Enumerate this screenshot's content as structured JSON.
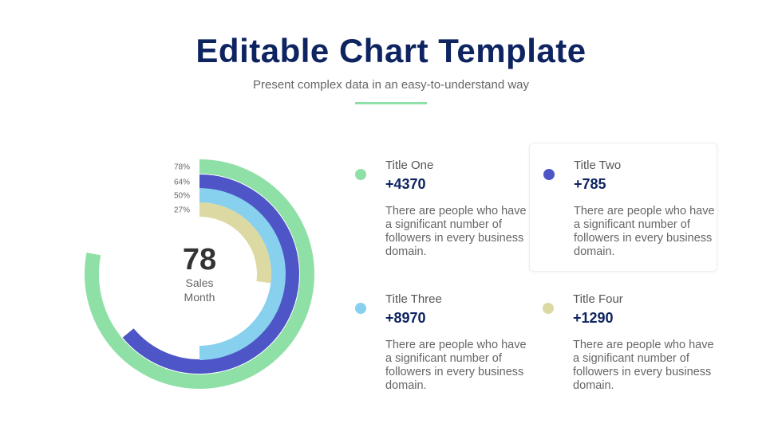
{
  "header": {
    "title": "Editable Chart Template",
    "subtitle": "Present complex data in an easy-to-understand way"
  },
  "chart_data": {
    "type": "radial-bar",
    "center_value": "78",
    "center_label_1": "Sales",
    "center_label_2": "Month",
    "series": [
      {
        "label": "78%",
        "value": 78,
        "color": "#8ee0a6"
      },
      {
        "label": "64%",
        "value": 64,
        "color": "#4e55c6"
      },
      {
        "label": "50%",
        "value": 50,
        "color": "#87d0ee"
      },
      {
        "label": "27%",
        "value": 27,
        "color": "#dcd9a2"
      }
    ]
  },
  "cards": [
    {
      "title": "Title One",
      "value": "+4370",
      "desc": "There are people who have a significant number of followers in every business domain.",
      "color": "#8ee0a6"
    },
    {
      "title": "Title Two",
      "value": "+785",
      "desc": "There are people who have a significant number of followers in every business domain.",
      "color": "#4e55c6"
    },
    {
      "title": "Title Three",
      "value": "+8970",
      "desc": "There are people who have a significant number of followers in every business domain.",
      "color": "#87d0ee"
    },
    {
      "title": "Title Four",
      "value": "+1290",
      "desc": "There are people who have a significant number of followers in every business domain.",
      "color": "#dcd9a2"
    }
  ]
}
